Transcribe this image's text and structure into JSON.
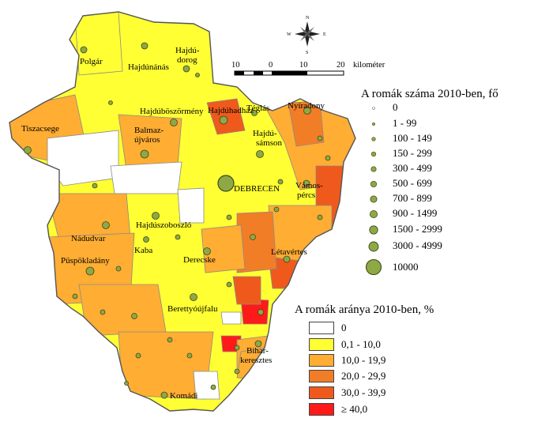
{
  "colors": {
    "c0": "#ffffff",
    "c1": "#ffff33",
    "c2": "#ffad33",
    "c3": "#f27d27",
    "c4": "#ef5a1c",
    "c5": "#ff1a1a",
    "dot": "#8fa846",
    "border": "#8a8a8a"
  },
  "compass": {
    "n": "N",
    "s": "S",
    "e": "E",
    "w": "W"
  },
  "scale": {
    "labels": [
      "10",
      "0",
      "10",
      "20"
    ],
    "unit": "kilométer"
  },
  "towns": [
    {
      "name": "Polgár"
    },
    {
      "name": "Hajdúnánás"
    },
    {
      "name": "Hajdú-\ndorog"
    },
    {
      "name": "Tiszacsege"
    },
    {
      "name": "Balmaz-\nújváros"
    },
    {
      "name": "Hajdúböszörmény"
    },
    {
      "name": "Téglás"
    },
    {
      "name": "Hajdúhadház"
    },
    {
      "name": "Hajdú-\nsámson"
    },
    {
      "name": "Nyíradony"
    },
    {
      "name": "DEBRECEN"
    },
    {
      "name": "Vámos-\npércs"
    },
    {
      "name": "Hajdúszoboszló"
    },
    {
      "name": "Nádudvar"
    },
    {
      "name": "Kaba"
    },
    {
      "name": "Püspökladány"
    },
    {
      "name": "Derecske"
    },
    {
      "name": "Létavértes"
    },
    {
      "name": "Berettyóújfalu"
    },
    {
      "name": "Bihar-\nkeresztes"
    },
    {
      "name": "Komádi"
    }
  ],
  "legend_count": {
    "title": "A romák száma 2010-ben, fő",
    "items": [
      {
        "label": "0"
      },
      {
        "label": "1 - 99"
      },
      {
        "label": "100 - 149"
      },
      {
        "label": "150 - 299"
      },
      {
        "label": "300 - 499"
      },
      {
        "label": "500 - 699"
      },
      {
        "label": "700 - 899"
      },
      {
        "label": "900 - 1499"
      },
      {
        "label": "1500 - 2999"
      },
      {
        "label": "3000 - 4999"
      },
      {
        "label": "10000"
      }
    ]
  },
  "legend_share": {
    "title": "A romák aránya 2010-ben, %",
    "items": [
      {
        "label": "0",
        "color": "#ffffff"
      },
      {
        "label": "0,1 - 10,0",
        "color": "#ffff33"
      },
      {
        "label": "10,0 - 19,9",
        "color": "#ffad33"
      },
      {
        "label": "20,0 - 29,9",
        "color": "#f27d27"
      },
      {
        "label": "30,0 - 39,9",
        "color": "#ef5a1c"
      },
      {
        "label": "≥ 40,0",
        "color": "#ff1a1a"
      }
    ]
  }
}
